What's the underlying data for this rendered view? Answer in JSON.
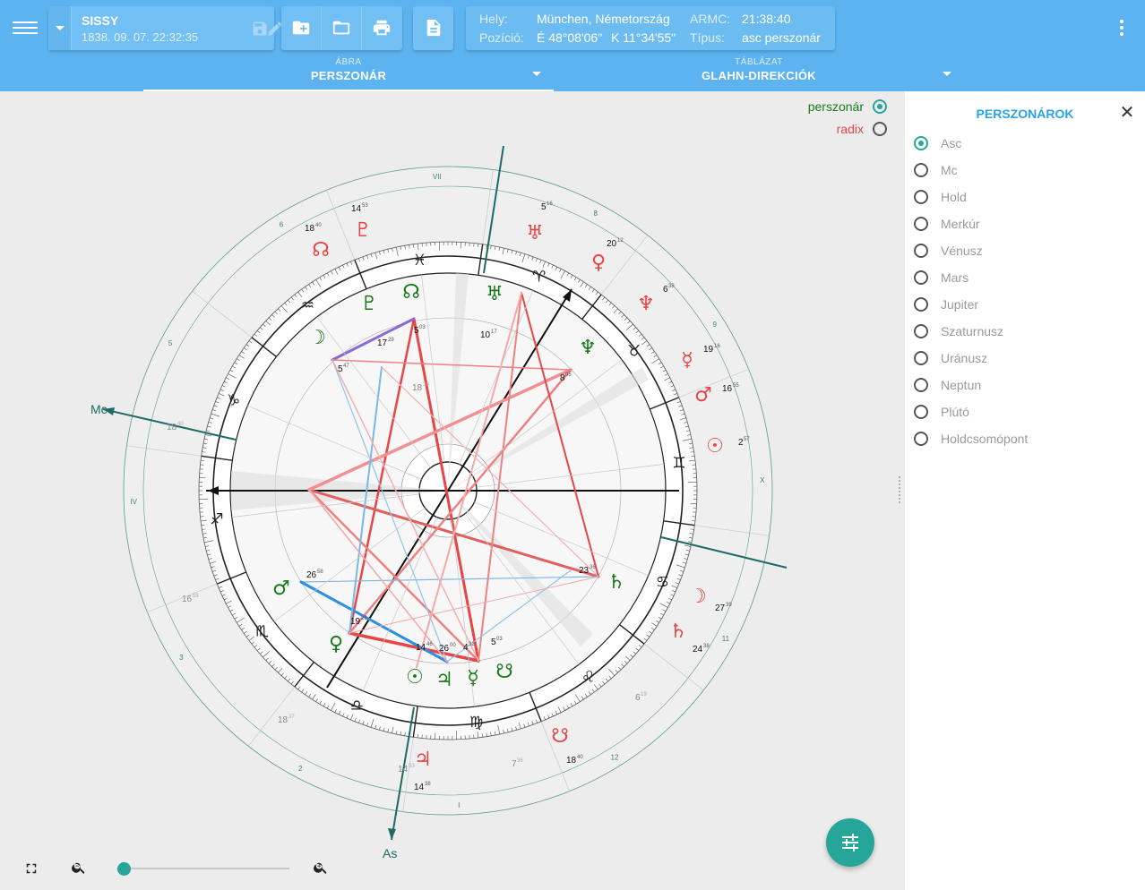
{
  "header": {
    "person_name": "SISSY",
    "person_datetime": "1838. 09. 07. 22:32:35",
    "place_label": "Hely:",
    "place_value": "München, Németország",
    "position_label": "Pozíció:",
    "position_lat": "É 48°08'06\"",
    "position_lon": "K 11°34'55\"",
    "armc_label": "ARMC:",
    "armc_value": "21:38:40",
    "type_label": "Típus:",
    "type_value": "asc perszonár"
  },
  "tabs": [
    {
      "small": "ÁBRA",
      "big": "PERSZONÁR"
    },
    {
      "small": "TÁBLÁZAT",
      "big": "GLAHN-DIREKCIÓK"
    }
  ],
  "chart_toggles": [
    {
      "label": "perszonár",
      "color": "#1a7a1a",
      "selected": true
    },
    {
      "label": "radix",
      "color": "#e64646",
      "selected": false
    }
  ],
  "panel": {
    "title": "PERSZONÁROK",
    "items": [
      "Asc",
      "Mc",
      "Hold",
      "Merkúr",
      "Vénusz",
      "Mars",
      "Jupiter",
      "Szaturnusz",
      "Uránusz",
      "Neptun",
      "Plútó",
      "Holdcsomópont"
    ],
    "selected_index": 0
  },
  "chart": {
    "axis_labels": {
      "mc": "Mc",
      "as": "As"
    },
    "zodiac_signs": [
      "♓",
      "♒",
      "♑",
      "♐",
      "♏",
      "♎",
      "♍",
      "♌",
      "♋",
      "♊",
      "♉",
      "♈"
    ],
    "outer_house_numbers": [
      "VII",
      "6",
      "5",
      "IV",
      "3",
      "2",
      "I",
      "12",
      "11",
      "X",
      "9",
      "8"
    ],
    "persona_planets": [
      {
        "glyph": "☊",
        "deg": "5",
        "min": "03"
      },
      {
        "glyph": "♅",
        "deg": "10",
        "min": "17"
      },
      {
        "glyph": "♆",
        "deg": "8",
        "min": "05"
      },
      {
        "glyph": "☽",
        "deg": "5",
        "min": "47"
      },
      {
        "glyph": "♇",
        "deg": "17",
        "min": "29"
      },
      {
        "glyph": "♂",
        "deg": "26",
        "min": "58"
      },
      {
        "glyph": "♀",
        "deg": "19",
        "min": "26"
      },
      {
        "glyph": "☉",
        "deg": "14",
        "min": "46"
      },
      {
        "glyph": "♃",
        "deg": "26",
        "min": "00"
      },
      {
        "glyph": "☿",
        "deg": "4",
        "min": "32"
      },
      {
        "glyph": "☋",
        "deg": "5",
        "min": "03"
      },
      {
        "glyph": "♄",
        "deg": "23",
        "min": "36"
      }
    ],
    "radix_planets": [
      {
        "glyph": "☊",
        "deg": "18",
        "min": "40"
      },
      {
        "glyph": "♇",
        "deg": "14",
        "min": "53"
      },
      {
        "glyph": "♅",
        "deg": "5",
        "min": "16"
      },
      {
        "glyph": "♀",
        "deg": "20",
        "min": "12"
      },
      {
        "glyph": "♆",
        "deg": "6",
        "min": "38"
      },
      {
        "glyph": "☿",
        "deg": "19",
        "min": "16"
      },
      {
        "glyph": "♂",
        "deg": "16",
        "min": "55"
      },
      {
        "glyph": "☉",
        "deg": "2",
        "min": "57"
      },
      {
        "glyph": "☽",
        "deg": "27",
        "min": "39"
      },
      {
        "glyph": "♄",
        "deg": "24",
        "min": "38"
      },
      {
        "glyph": "☋",
        "deg": "18",
        "min": "40"
      },
      {
        "glyph": "♃",
        "deg": "14",
        "min": "38"
      }
    ],
    "grey_cusps": [
      {
        "deg": "18",
        "min": "40"
      },
      {
        "deg": "16",
        "min": "55"
      },
      {
        "deg": "6",
        "min": "19"
      },
      {
        "deg": "7",
        "min": "36"
      },
      {
        "deg": "18",
        "min": "37"
      },
      {
        "deg": "14",
        "min": "53"
      },
      {
        "deg": "18",
        "min": "38"
      }
    ]
  },
  "colors": {
    "appbar": "#5cb3f0",
    "accent": "#26a69a",
    "persona": "#1a7a1a",
    "radix": "#e64646"
  }
}
